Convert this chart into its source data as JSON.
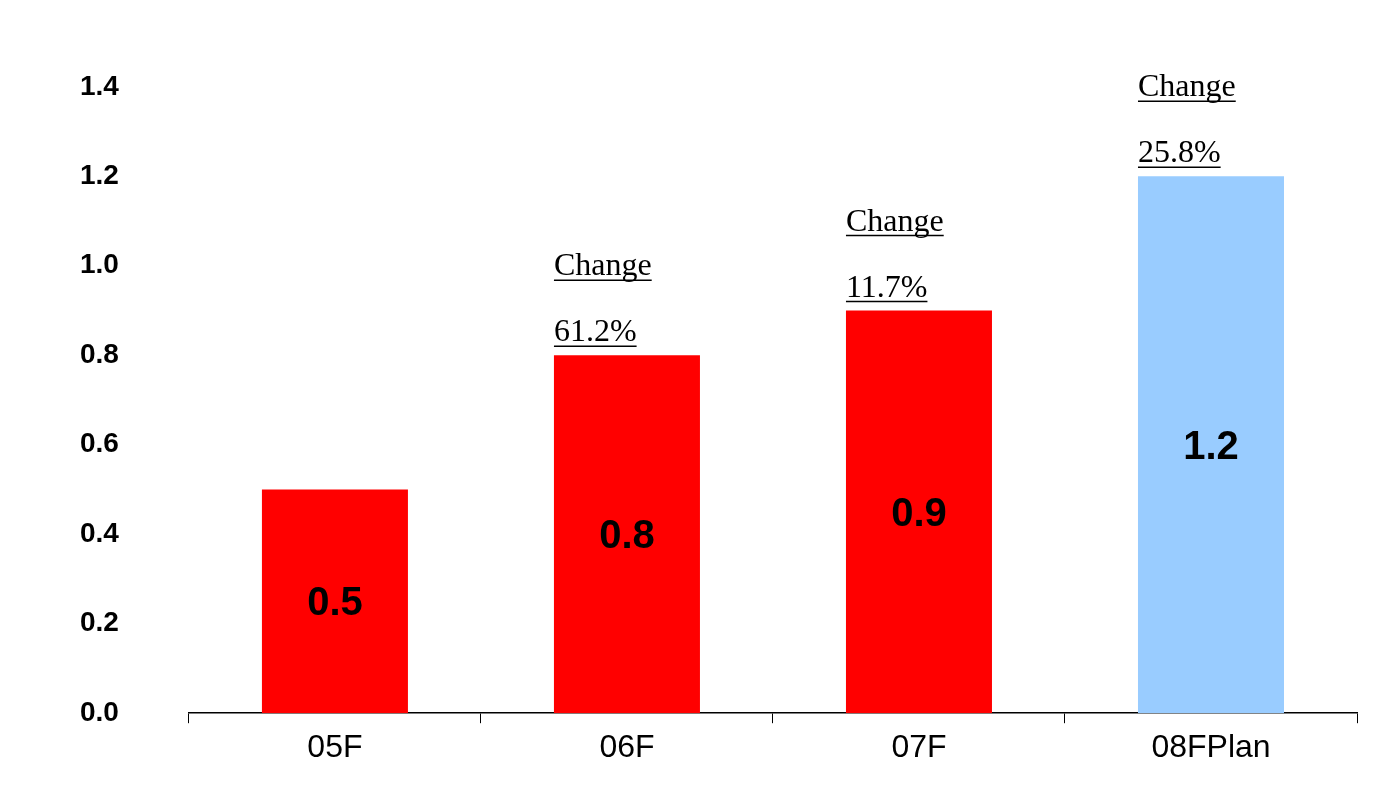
{
  "chart_data": {
    "type": "bar",
    "categories": [
      "05F",
      "06F",
      "07F",
      "08FPlan"
    ],
    "values": [
      0.5,
      0.8,
      0.9,
      1.2
    ],
    "colors": [
      "#ff0000",
      "#ff0000",
      "#ff0000",
      "#99ccff"
    ],
    "ylim": [
      0,
      1.4
    ],
    "yticks": [
      {
        "value": 0,
        "label": "0.0"
      },
      {
        "value": 0.2,
        "label": "0.2"
      },
      {
        "value": 0.4,
        "label": "0.4"
      },
      {
        "value": 0.6,
        "label": "0.6"
      },
      {
        "value": 0.8,
        "label": "0.8"
      },
      {
        "value": 1.0,
        "label": "1.0"
      },
      {
        "value": 1.2,
        "label": "1.2"
      },
      {
        "value": 1.4,
        "label": "1.4"
      }
    ],
    "data_labels": true,
    "grid": false,
    "legend": false,
    "annotations": [
      {
        "text": "Change 61.2%",
        "x": "06F",
        "y": 0.8
      },
      {
        "text": "Change 11.7%",
        "x": "07F",
        "y": 0.9
      },
      {
        "text": "Change 25.8%",
        "x": "08FPlan",
        "y": 1.2
      }
    ]
  }
}
